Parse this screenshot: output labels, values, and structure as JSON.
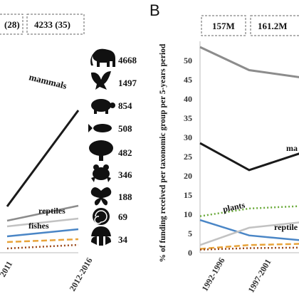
{
  "panel_b_letter": "B",
  "summary_boxes_left": [
    "(28)",
    "4233 (35)"
  ],
  "summary_boxes_right": [
    "157M",
    "161.2M"
  ],
  "species_counts": [
    {
      "icon": "elephant-icon",
      "count": "4668"
    },
    {
      "icon": "bird-icon",
      "count": "1497"
    },
    {
      "icon": "turtle-icon",
      "count": "854"
    },
    {
      "icon": "fish-icon",
      "count": "508"
    },
    {
      "icon": "tree-icon",
      "count": "482"
    },
    {
      "icon": "frog-icon",
      "count": "346"
    },
    {
      "icon": "butterfly-icon",
      "count": "188"
    },
    {
      "icon": "shell-icon",
      "count": "69"
    },
    {
      "icon": "mushroom-icon",
      "count": "34"
    }
  ],
  "chart_data": [
    {
      "type": "line",
      "categories": [
        "2011",
        "2012-2016"
      ],
      "series": [
        {
          "name": "mammals",
          "color": "#1a1a1a",
          "values": [
            290,
            155
          ]
        },
        {
          "name": "",
          "color": "#8c8c8c",
          "values": [
            310,
            289
          ]
        },
        {
          "name": "reptiles",
          "color": "#c2c2c2",
          "values": [
            318,
            307
          ]
        },
        {
          "name": "fishes",
          "color": "#4a86c6",
          "values": [
            332,
            322
          ]
        },
        {
          "name": "",
          "color": "#e8a33a",
          "values": [
            340,
            336
          ]
        },
        {
          "name": "",
          "color": "#9b4a1c",
          "values": [
            349,
            344
          ]
        }
      ],
      "series_labels": [
        "mammals",
        "reptiles",
        "fishes"
      ]
    },
    {
      "type": "line",
      "ylabel": "% of funding received per taxonomic group per 5-years period",
      "yticks": [
        0,
        5,
        10,
        15,
        20,
        25,
        30,
        35,
        40,
        45,
        50
      ],
      "ylim": [
        0,
        55
      ],
      "categories": [
        "1992-1996",
        "1997-2001"
      ],
      "series": [
        {
          "name": "",
          "color": "#8c8c8c",
          "values": [
            53.5,
            47.5
          ]
        },
        {
          "name": "mammals",
          "color": "#1a1a1a",
          "values": [
            28.5,
            21.5
          ]
        },
        {
          "name": "plants",
          "color": "#6aaa3a",
          "values": [
            9.5,
            11.5
          ]
        },
        {
          "name": "",
          "color": "#4a86c6",
          "values": [
            8.5,
            4.5
          ]
        },
        {
          "name": "reptiles",
          "color": "#c2c2c2",
          "values": [
            2.0,
            6.5
          ]
        },
        {
          "name": "",
          "color": "#e8a33a",
          "values": [
            1.0,
            2.0
          ]
        },
        {
          "name": "",
          "color": "#9b4a1c",
          "values": [
            0.8,
            1.2
          ]
        }
      ],
      "series_labels": [
        "mammals",
        "plants",
        "reptiles"
      ]
    }
  ],
  "text": {
    "left_x1": "2011",
    "left_x2": "2012-2016",
    "right_x1": "1992-1996",
    "right_x2": "1997-2001",
    "lbl_mammals_left": "mammals",
    "lbl_reptiles_left": "reptiles",
    "lbl_fishes_left": "fishes",
    "lbl_mammals_right": "ma",
    "lbl_plants_right": "plants",
    "lbl_reptiles_right": "reptile"
  }
}
